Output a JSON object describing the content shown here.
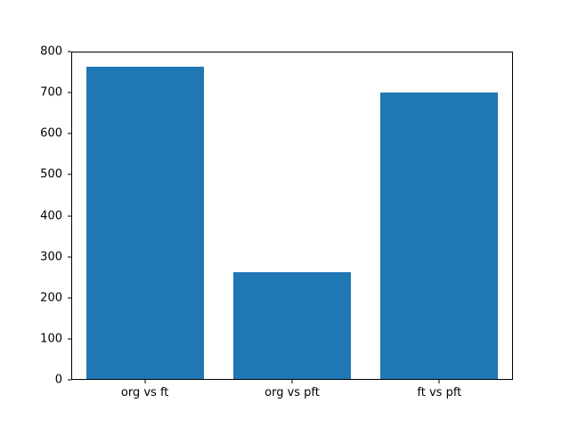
{
  "chart_data": {
    "type": "bar",
    "categories": [
      "org vs ft",
      "org vs pft",
      "ft vs pft"
    ],
    "values": [
      765,
      262,
      702
    ],
    "title": "",
    "xlabel": "",
    "ylabel": "",
    "ylim": [
      0,
      800
    ],
    "ytick_step": 100,
    "yticks": [
      0,
      100,
      200,
      300,
      400,
      500,
      600,
      700,
      800
    ],
    "bar_color": "#1f77b4",
    "bar_width_fraction": 0.8,
    "grid": false,
    "legend": "none",
    "background_color": "#ffffff",
    "spine_color": "#000000"
  }
}
